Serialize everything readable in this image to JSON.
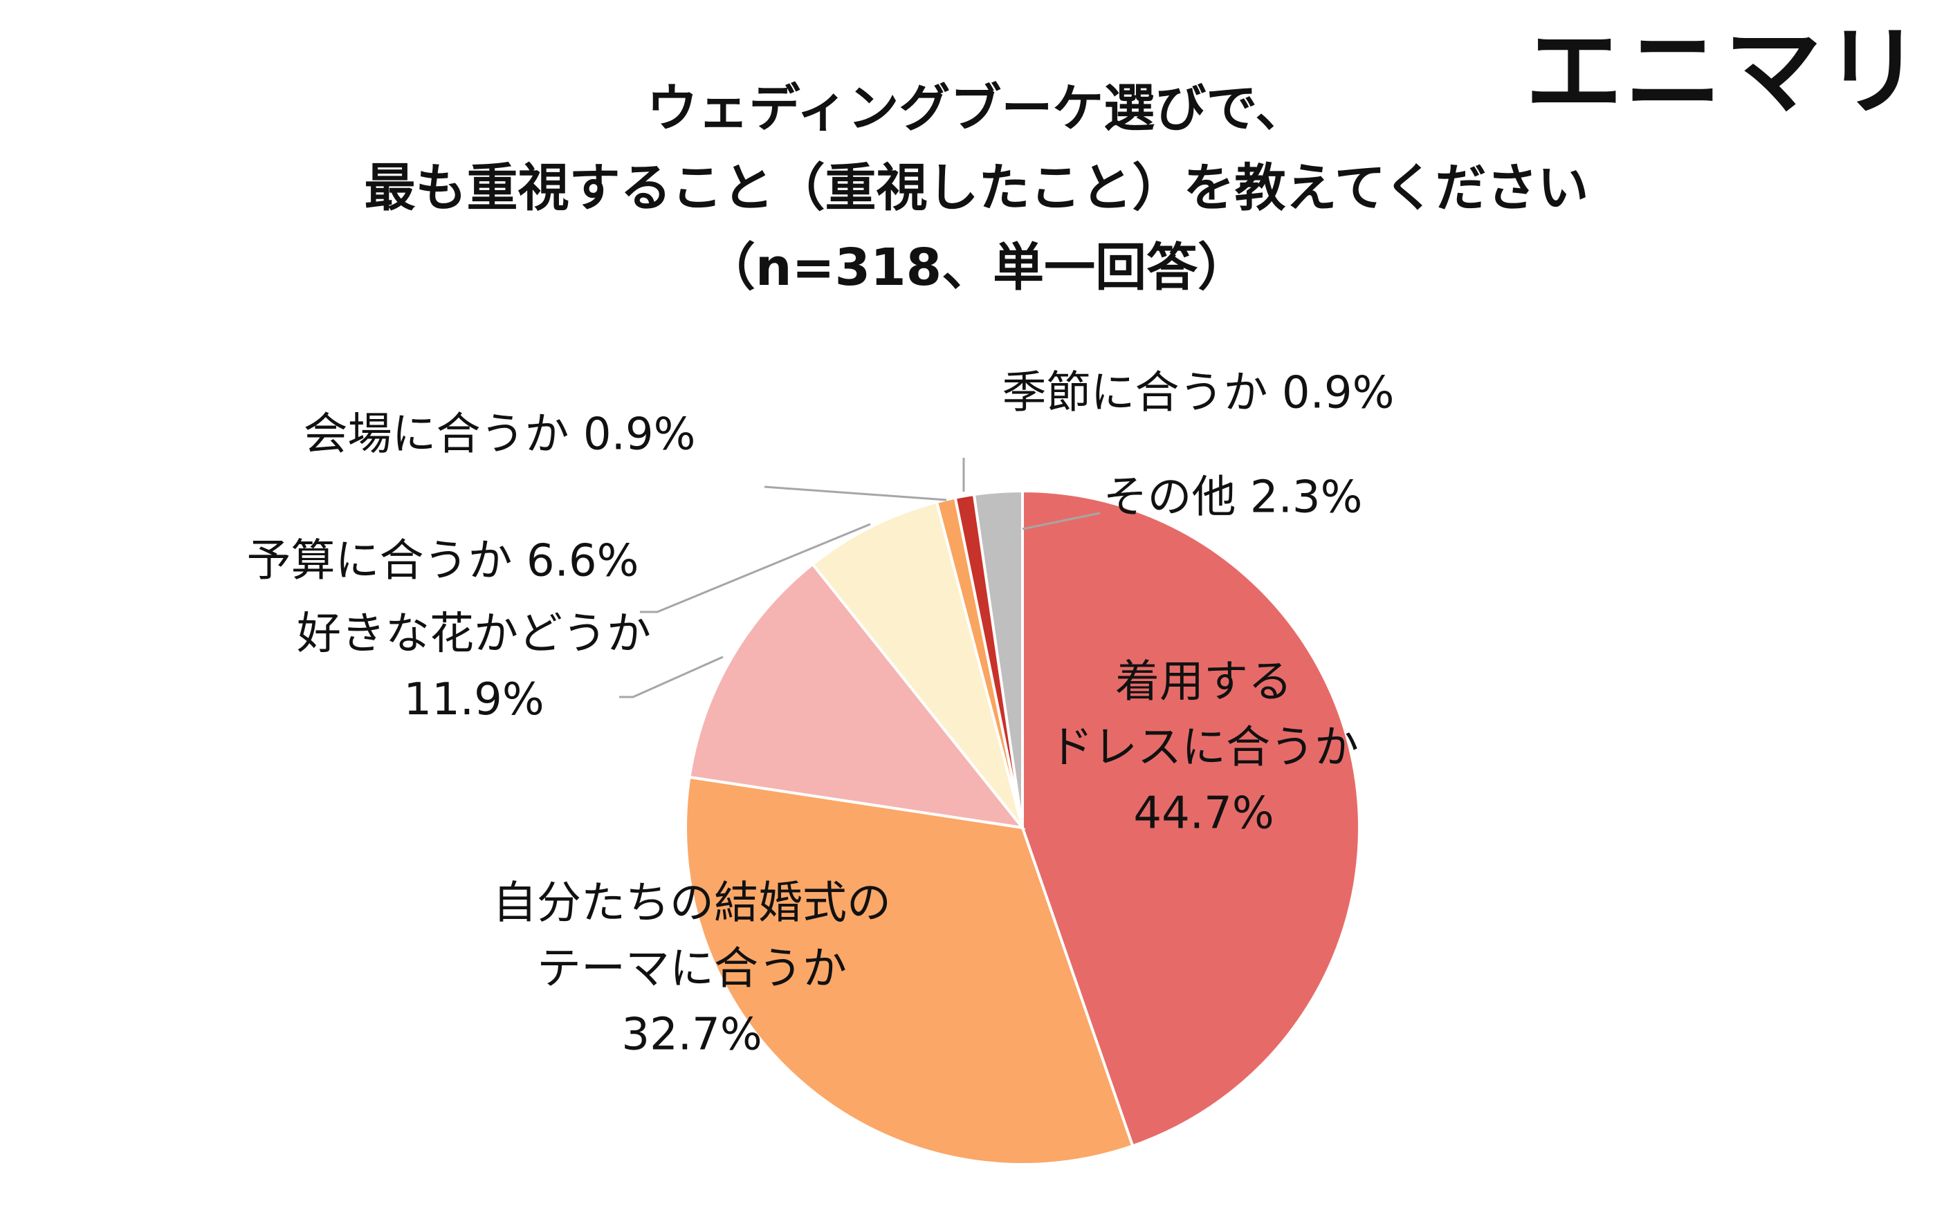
{
  "logo": "エニマリ",
  "title_lines": [
    "ウェディングブーケ選びで、",
    "最も重視すること（重視したこと）を教えてください",
    "（n=318、単一回答）"
  ],
  "colors": {
    "dress": "#e66b68",
    "theme": "#fba767",
    "flower": "#f5b4b1",
    "budget": "#fdf0cc",
    "venue": "#f9a55f",
    "season": "#c7322a",
    "other": "#bfbfbf",
    "leader": "#a6a6a6"
  },
  "chart_data": {
    "type": "pie",
    "title": "ウェディングブーケ選びで、最も重視すること（重視したこと）を教えてください（n=318、単一回答）",
    "unit": "%",
    "slices": [
      {
        "key": "dress",
        "label": "着用するドレスに合うか",
        "label_lines": [
          "着用する",
          "ドレスに合うか",
          "44.7%"
        ],
        "value": 44.7
      },
      {
        "key": "theme",
        "label": "自分たちの結婚式のテーマに合うか",
        "label_lines": [
          "自分たちの結婚式の",
          "テーマに合うか",
          "32.7%"
        ],
        "value": 32.7
      },
      {
        "key": "flower",
        "label": "好きな花かどうか",
        "label_lines": [
          "好きな花かどうか",
          "11.9%"
        ],
        "value": 11.9
      },
      {
        "key": "budget",
        "label": "予算に合うか",
        "label_lines": [
          "予算に合うか 6.6%"
        ],
        "value": 6.6
      },
      {
        "key": "venue",
        "label": "会場に合うか",
        "label_lines": [
          "会場に合うか 0.9%"
        ],
        "value": 0.9
      },
      {
        "key": "season",
        "label": "季節に合うか",
        "label_lines": [
          "季節に合うか 0.9%"
        ],
        "value": 0.9
      },
      {
        "key": "other",
        "label": "その他",
        "label_lines": [
          "その他 2.3%"
        ],
        "value": 2.3
      }
    ]
  }
}
